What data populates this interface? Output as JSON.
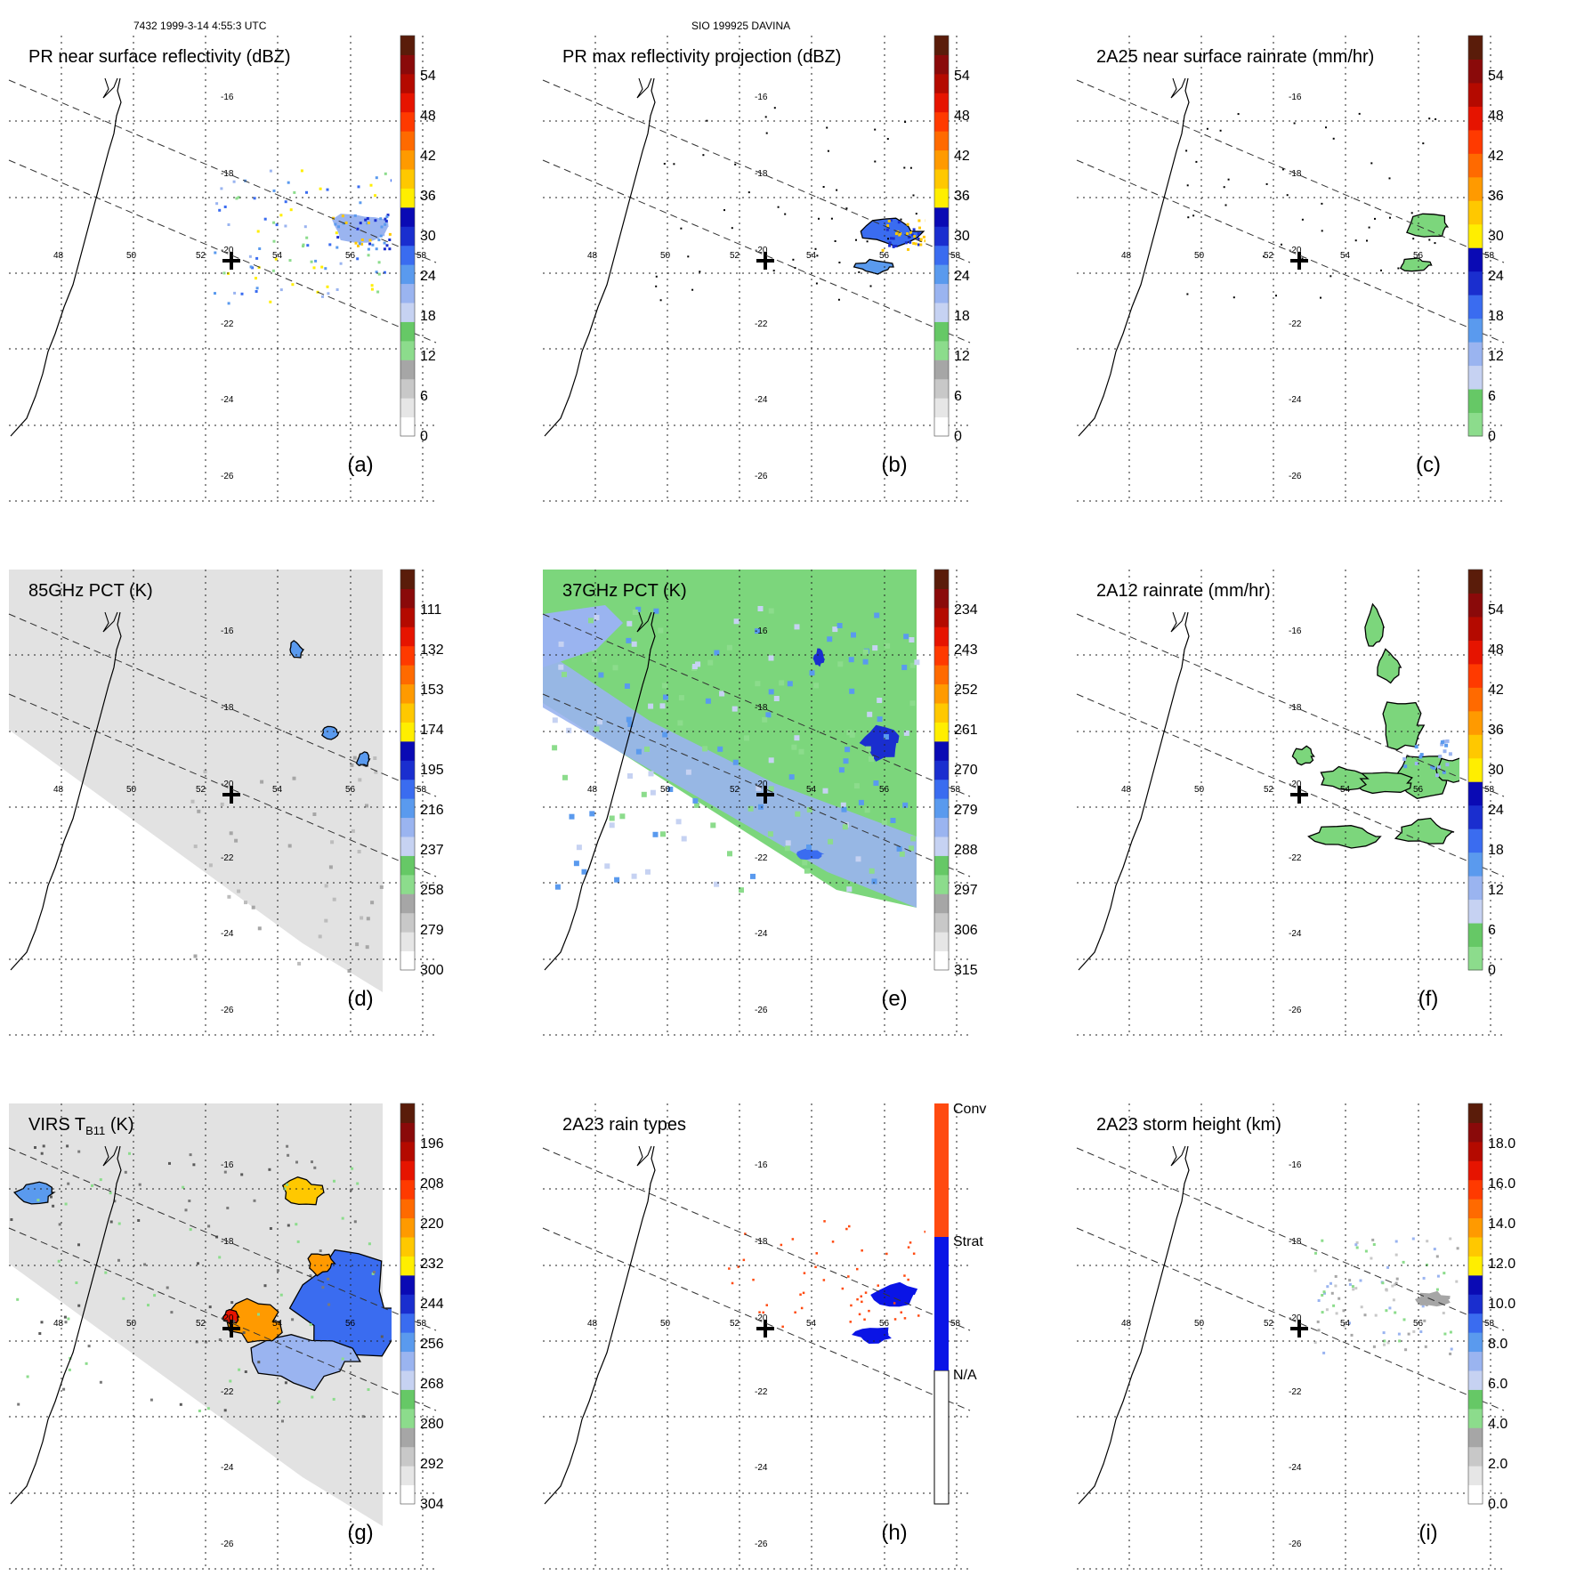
{
  "header": {
    "left": "7432 1999-3-14 4:55:3 UTC",
    "center": "SIO 199925 DAVINA"
  },
  "map_labels": {
    "lon": [
      "48",
      "50",
      "52",
      "54",
      "56",
      "58"
    ],
    "lat": [
      "-16",
      "-18",
      "-20",
      "-22",
      "-24",
      "-26"
    ]
  },
  "colors": {
    "cbar_sequential": [
      "#ffffff",
      "#e6e6e6",
      "#c8c8c8",
      "#a6a6a6",
      "#8cdc8c",
      "#66c866",
      "#c6d2f2",
      "#9ab4f0",
      "#5a9aee",
      "#3a6cf0",
      "#1a2ecf",
      "#0a0ab4",
      "#ffee00",
      "#ffc800",
      "#ff9a00",
      "#ff6a00",
      "#ff3a00",
      "#e61400",
      "#b40a00",
      "#8a0a0a",
      "#5a1c0a"
    ],
    "cbar_rain": [
      "#8cdc8c",
      "#66c866",
      "#c6d2f2",
      "#9ab4f0",
      "#5a9aee",
      "#3a6cf0",
      "#1a2ecf",
      "#0a0ab4",
      "#ffee00",
      "#ffc800",
      "#ff9a00",
      "#ff6a00",
      "#ff3a00",
      "#e61400",
      "#b40a00",
      "#8a0a0a",
      "#5a1c0a"
    ],
    "green": "#7cd67c",
    "blue": "#1a2ecf",
    "lightblue": "#9ab4f0",
    "orange": "#ff6a00",
    "strat_blue": "#0a14e6",
    "conv_orange": "#ff4a10",
    "swath_gray": "#e2e2e2"
  },
  "panels": [
    {
      "id": "a",
      "title": "PR near surface reflectivity (dBZ)",
      "letter": "(a)",
      "ticks": [
        "0",
        "6",
        "12",
        "18",
        "24",
        "30",
        "36",
        "42",
        "48",
        "54"
      ],
      "swath": "narrow",
      "pattern": "pr_refl"
    },
    {
      "id": "b",
      "title": "PR max reflectivity projection (dBZ)",
      "letter": "(b)",
      "ticks": [
        "0",
        "6",
        "12",
        "18",
        "24",
        "30",
        "36",
        "42",
        "48",
        "54"
      ],
      "swath": "narrow",
      "pattern": "pr_max"
    },
    {
      "id": "c",
      "title": "2A25 near surface rainrate (mm/hr)",
      "letter": "(c)",
      "ticks": [
        "0",
        "6",
        "12",
        "18",
        "24",
        "30",
        "36",
        "42",
        "48",
        "54"
      ],
      "swath": "narrow",
      "pattern": "rain25"
    },
    {
      "id": "d",
      "title": "85GHz PCT (K)",
      "letter": "(d)",
      "ticks": [
        "300",
        "279",
        "258",
        "237",
        "216",
        "195",
        "174",
        "153",
        "132",
        "111"
      ],
      "swath": "wide_gray",
      "pattern": "pct85"
    },
    {
      "id": "e",
      "title": "37GHz PCT (K)",
      "letter": "(e)",
      "ticks": [
        "315",
        "306",
        "297",
        "288",
        "279",
        "270",
        "261",
        "252",
        "243",
        "234"
      ],
      "swath": "wide_green",
      "pattern": "pct37"
    },
    {
      "id": "f",
      "title": "2A12 rainrate (mm/hr)",
      "letter": "(f)",
      "ticks": [
        "0",
        "6",
        "12",
        "18",
        "24",
        "30",
        "36",
        "42",
        "48",
        "54"
      ],
      "swath": "narrow",
      "pattern": "rain12"
    },
    {
      "id": "g",
      "title": "VIRS T_B11 (K)",
      "title_main": "VIRS T",
      "title_sub": "B11",
      "title_end": " (K)",
      "letter": "(g)",
      "ticks": [
        "304",
        "292",
        "280",
        "268",
        "256",
        "244",
        "232",
        "220",
        "208",
        "196"
      ],
      "swath": "wide_gray",
      "pattern": "virs"
    },
    {
      "id": "h",
      "title": "2A23 rain types",
      "letter": "(h)",
      "ticks": [
        "N/A",
        "Strat",
        "Conv"
      ],
      "swath": "narrow",
      "pattern": "raintype"
    },
    {
      "id": "i",
      "title": "2A23 storm height (km)",
      "letter": "(i)",
      "ticks": [
        "0.0",
        "2.0",
        "4.0",
        "6.0",
        "8.0",
        "10.0",
        "12.0",
        "14.0",
        "16.0",
        "18.0"
      ],
      "swath": "narrow",
      "pattern": "height"
    }
  ]
}
